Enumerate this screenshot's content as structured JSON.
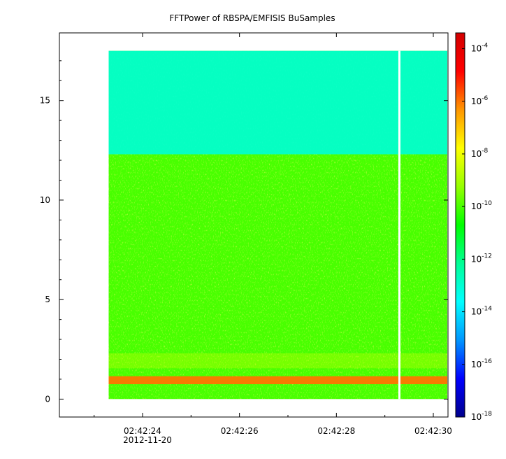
{
  "chart_data": {
    "type": "heatmap",
    "title": "FFTPower of RBSPA/EMFISIS  BuSamples",
    "xlabel": "",
    "ylabel": "",
    "x_ticks": [
      "02:42:24",
      "02:42:26",
      "02:42:28",
      "02:42:30"
    ],
    "x_date_label": "2012-11-20",
    "y_ticks": [
      0,
      5,
      10,
      15
    ],
    "ylim": [
      -0.9,
      18.4
    ],
    "y_data_range": [
      0,
      17.5
    ],
    "x_data_start": "02:42:23.3",
    "x_data_gap": "02:42:29.3",
    "background_band": {
      "y_from": 12.3,
      "y_to": 17.5,
      "level_exp": -13
    },
    "main_level_exp": -10,
    "bands": [
      {
        "y_from": 0.75,
        "y_to": 1.15,
        "level_exp": -6
      },
      {
        "y_from": 1.55,
        "y_to": 2.3,
        "level_exp": -8.5
      }
    ],
    "colorbar": {
      "scale": "log",
      "range_exp": [
        -18,
        -3.4
      ],
      "ticks": [
        {
          "base": "10",
          "exp": "-4"
        },
        {
          "base": "10",
          "exp": "-6"
        },
        {
          "base": "10",
          "exp": "-8"
        },
        {
          "base": "10",
          "exp": "-10"
        },
        {
          "base": "10",
          "exp": "-12"
        },
        {
          "base": "10",
          "exp": "-14"
        },
        {
          "base": "10",
          "exp": "-16"
        },
        {
          "base": "10",
          "exp": "-18"
        }
      ],
      "colors": [
        "#00008c",
        "#0000ff",
        "#0096ff",
        "#00ffff",
        "#00ff96",
        "#00ff00",
        "#96ff00",
        "#ffff00",
        "#ff9600",
        "#ff0000",
        "#d20000"
      ]
    }
  }
}
